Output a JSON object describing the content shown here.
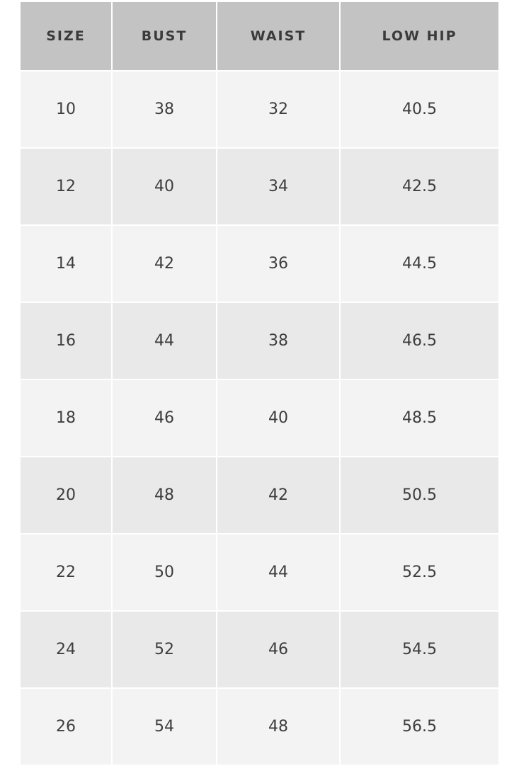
{
  "table": {
    "headers": [
      "SIZE",
      "BUST",
      "WAIST",
      "LOW HIP"
    ],
    "rows": [
      [
        "10",
        "38",
        "32",
        "40.5"
      ],
      [
        "12",
        "40",
        "34",
        "42.5"
      ],
      [
        "14",
        "42",
        "36",
        "44.5"
      ],
      [
        "16",
        "44",
        "38",
        "46.5"
      ],
      [
        "18",
        "46",
        "40",
        "48.5"
      ],
      [
        "20",
        "48",
        "42",
        "50.5"
      ],
      [
        "22",
        "50",
        "44",
        "52.5"
      ],
      [
        "24",
        "52",
        "46",
        "54.5"
      ],
      [
        "26",
        "54",
        "48",
        "56.5"
      ]
    ]
  },
  "colors": {
    "header_bg": "#c3c3c3",
    "row_light": "#f3f3f3",
    "row_dark": "#e9e9e9",
    "text": "#3d3d3d"
  }
}
